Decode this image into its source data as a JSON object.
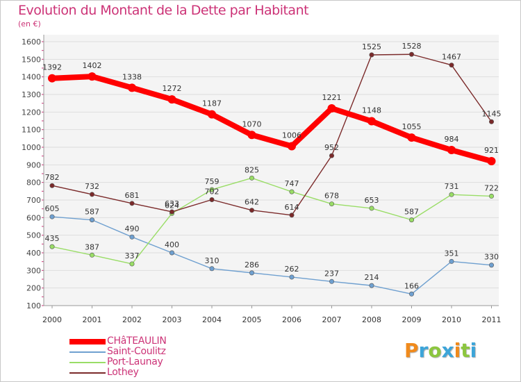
{
  "header": {
    "title": "Evolution du Montant de la Dette par Habitant",
    "subtitle": "(en €)"
  },
  "logo": {
    "letters": [
      "P",
      "r",
      "o",
      "x",
      "i",
      "t",
      "i"
    ],
    "colors": [
      "#f08a1c",
      "#3da5d9",
      "#8cc63f",
      "#3da5d9",
      "#f08a1c",
      "#8cc63f",
      "#3da5d9"
    ]
  },
  "chart_data": {
    "type": "line",
    "title": "Evolution du Montant de la Dette par Habitant",
    "subtitle": "(en €)",
    "xlabel": "",
    "ylabel": "",
    "categories": [
      "2000",
      "2001",
      "2002",
      "2003",
      "2004",
      "2005",
      "2006",
      "2007",
      "2008",
      "2009",
      "2010",
      "2011"
    ],
    "ylim": [
      100,
      1600
    ],
    "yticks": [
      100,
      200,
      300,
      400,
      500,
      600,
      700,
      800,
      900,
      1000,
      1100,
      1200,
      1300,
      1400,
      1500,
      1600
    ],
    "grid": "horizontal",
    "legend": "bottom-left",
    "series": [
      {
        "name": "CHâTEAULIN",
        "color": "#ff0000",
        "thick": true,
        "values": [
          1392,
          1402,
          1338,
          1272,
          1187,
          1070,
          1006,
          1221,
          1148,
          1055,
          984,
          921
        ]
      },
      {
        "name": "Saint-Coulitz",
        "color": "#6fa0d0",
        "thick": false,
        "values": [
          605,
          587,
          490,
          400,
          310,
          286,
          262,
          237,
          214,
          166,
          351,
          330
        ]
      },
      {
        "name": "Port-Launay",
        "color": "#99dd66",
        "thick": false,
        "values": [
          435,
          387,
          337,
          624,
          759,
          825,
          747,
          678,
          653,
          587,
          731,
          722
        ]
      },
      {
        "name": "Lothey",
        "color": "#7b2a2a",
        "thick": false,
        "values": [
          782,
          732,
          681,
          633,
          702,
          642,
          614,
          952,
          1525,
          1528,
          1467,
          1145
        ]
      }
    ]
  }
}
